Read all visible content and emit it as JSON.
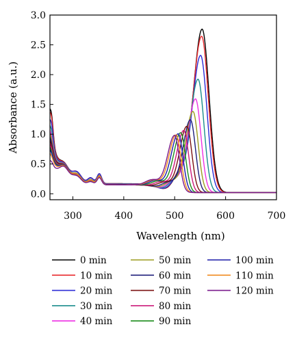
{
  "chart_data": {
    "type": "line",
    "title": "",
    "xlabel": "Wavelength (nm)",
    "ylabel": "Absorbance (a.u.)",
    "xlim": [
      255,
      700
    ],
    "ylim": [
      -0.1,
      3.0
    ],
    "xticks": [
      300,
      400,
      500,
      600,
      700
    ],
    "yticks": [
      0.0,
      0.5,
      1.0,
      1.5,
      2.0,
      2.5,
      3.0
    ],
    "xtick_labels": [
      "300",
      "400",
      "500",
      "600",
      "700"
    ],
    "ytick_labels": [
      "0.0",
      "0.5",
      "1.0",
      "1.5",
      "2.0",
      "2.5",
      "3.0"
    ],
    "grid": false,
    "legend_position": "bottom",
    "series": [
      {
        "name": "0 min",
        "color": "#000000",
        "peak_wavelength": 554,
        "peak_absorbance": 2.74,
        "uv_band_absorbance": 1.14
      },
      {
        "name": "10 min",
        "color": "#e8262a",
        "peak_wavelength": 553,
        "peak_absorbance": 2.62,
        "uv_band_absorbance": 1.1
      },
      {
        "name": "20 min",
        "color": "#2b2bd6",
        "peak_wavelength": 551,
        "peak_absorbance": 2.3,
        "uv_band_absorbance": 1.02
      },
      {
        "name": "30 min",
        "color": "#1a8c8c",
        "peak_wavelength": 546,
        "peak_absorbance": 1.9,
        "uv_band_absorbance": 0.97
      },
      {
        "name": "40 min",
        "color": "#ee2fe4",
        "peak_wavelength": 541,
        "peak_absorbance": 1.57,
        "uv_band_absorbance": 0.93
      },
      {
        "name": "50 min",
        "color": "#9b9b1e",
        "peak_wavelength": 536,
        "peak_absorbance": 1.36,
        "uv_band_absorbance": 0.9
      },
      {
        "name": "60 min",
        "color": "#1d1d7a",
        "peak_wavelength": 531,
        "peak_absorbance": 1.22,
        "uv_band_absorbance": 0.86
      },
      {
        "name": "70 min",
        "color": "#7a1010",
        "peak_wavelength": 524,
        "peak_absorbance": 1.11,
        "uv_band_absorbance": 0.82
      },
      {
        "name": "80 min",
        "color": "#cc1a7a",
        "peak_wavelength": 518,
        "peak_absorbance": 1.04,
        "uv_band_absorbance": 0.77
      },
      {
        "name": "90 min",
        "color": "#1a8c1a",
        "peak_wavelength": 512,
        "peak_absorbance": 1.0,
        "uv_band_absorbance": 0.72
      },
      {
        "name": "100 min",
        "color": "#1a1aa8",
        "peak_wavelength": 507,
        "peak_absorbance": 0.98,
        "uv_band_absorbance": 0.68
      },
      {
        "name": "110 min",
        "color": "#f08a1e",
        "peak_wavelength": 503,
        "peak_absorbance": 0.96,
        "uv_band_absorbance": 0.62
      },
      {
        "name": "120 min",
        "color": "#7a1a8c",
        "peak_wavelength": 500,
        "peak_absorbance": 0.95,
        "uv_band_absorbance": 0.5
      }
    ]
  }
}
